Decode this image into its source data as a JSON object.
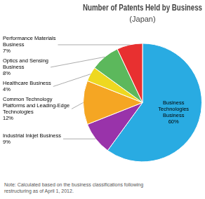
{
  "chart_data": {
    "type": "pie",
    "title": "Number of Patents Held by Business",
    "subtitle": "(Japan)",
    "categories": [
      "Business\nTechnologies\nBusiness",
      "Industrial Inkjet Business",
      "Common Technology\nPlatforms and Leading-Edge\nTechnologies",
      "Healthcare Business",
      "Optics and Sensing\nBusiness",
      "Performance Materials\nBusiness"
    ],
    "values": [
      60,
      9,
      12,
      4,
      8,
      7
    ],
    "value_labels": [
      "60%",
      "9%",
      "12%",
      "4%",
      "8%",
      "7%"
    ],
    "colors": [
      "#29ABE2",
      "#9933AA",
      "#F5A623",
      "#EED820",
      "#5CB85C",
      "#E83030"
    ],
    "data_labels": true,
    "note": "Note: Calculated based on the business classifications following\nrestructuring as of April 1, 2012."
  }
}
